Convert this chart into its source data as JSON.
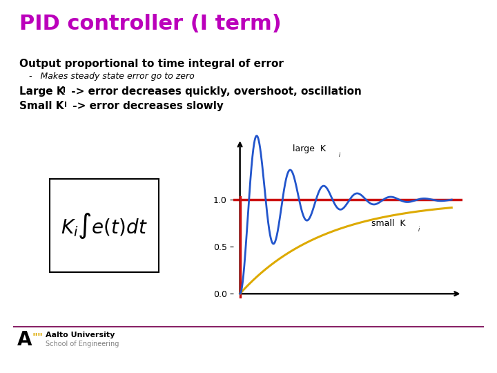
{
  "title": "PID controller (I term)",
  "title_color": "#bb00bb",
  "title_fontsize": 22,
  "bg_color": "#ffffff",
  "line1": "Output proportional to time integral of error",
  "line2": "-   Makes steady state error go to zero",
  "line3_pre": "Large K",
  "line3_sub": "I",
  "line3_post": " -> error decreases quickly, overshoot, oscillation",
  "line4_pre": "Small K",
  "line4_sub": "I",
  "line4_post": " -> error decreases slowly",
  "plot_yticks": [
    0.0,
    0.5,
    1.0
  ],
  "blue_color": "#2255cc",
  "red_color": "#cc1111",
  "yellow_color": "#ddaa00",
  "footer_line_color": "#882266",
  "aalto_A_color": "#000000",
  "aalto_quote_color": "#ddaa00",
  "label_large": "large  K",
  "label_small": "small  K",
  "footer_text1": "Aalto University",
  "footer_text2": "School of Engineering"
}
